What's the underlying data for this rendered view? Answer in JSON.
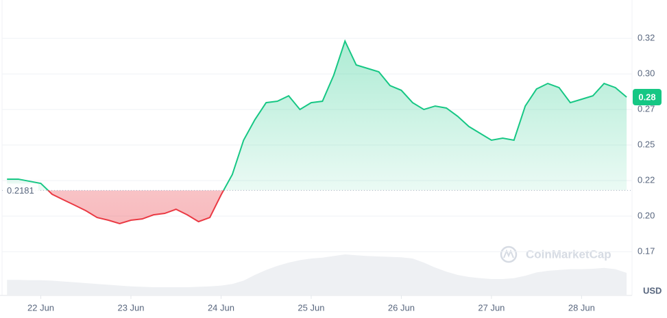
{
  "chart_data": {
    "type": "line",
    "x": [
      21.625,
      21.75,
      21.875,
      22,
      22.125,
      22.25,
      22.375,
      22.5,
      22.625,
      22.75,
      22.875,
      23,
      23.125,
      23.25,
      23.375,
      23.5,
      23.625,
      23.75,
      23.875,
      24,
      24.125,
      24.25,
      24.375,
      24.5,
      24.625,
      24.75,
      24.875,
      25,
      25.125,
      25.25,
      25.375,
      25.5,
      25.625,
      25.75,
      25.875,
      26,
      26.125,
      26.25,
      26.375,
      26.5,
      26.625,
      26.75,
      26.875,
      27,
      27.125,
      27.25,
      27.375,
      27.5,
      27.625,
      27.75,
      27.875,
      28,
      28.125,
      28.25,
      28.375,
      28.5
    ],
    "values": [
      0.226,
      0.226,
      0.2245,
      0.223,
      0.2154,
      0.2115,
      0.2077,
      0.2038,
      0.199,
      0.1971,
      0.1947,
      0.1971,
      0.198,
      0.2009,
      0.2019,
      0.2048,
      0.2009,
      0.1961,
      0.199,
      0.2149,
      0.2293,
      0.2534,
      0.2678,
      0.2798,
      0.2808,
      0.2846,
      0.275,
      0.2798,
      0.2808,
      0.2991,
      0.3231,
      0.3063,
      0.3039,
      0.3015,
      0.2918,
      0.2885,
      0.2798,
      0.275,
      0.2774,
      0.276,
      0.2702,
      0.263,
      0.2582,
      0.2534,
      0.2548,
      0.2534,
      0.2774,
      0.2894,
      0.2933,
      0.2904,
      0.2798,
      0.2822,
      0.2846,
      0.2933,
      0.2904,
      0.2837
    ],
    "volume": [
      38,
      38,
      37,
      37,
      36,
      34,
      32,
      30,
      28,
      26,
      24,
      22,
      21,
      20,
      20,
      20,
      20,
      21,
      22,
      24,
      28,
      36,
      50,
      62,
      72,
      80,
      86,
      90,
      92,
      96,
      100,
      98,
      96,
      95,
      94,
      93,
      90,
      80,
      68,
      58,
      50,
      45,
      42,
      40,
      40,
      42,
      48,
      56,
      60,
      62,
      64,
      64,
      65,
      67,
      64,
      55
    ],
    "volume_lim": [
      0,
      100
    ],
    "color_up": "#16c784",
    "color_down": "#ea3943",
    "baseline": 0.2181,
    "current": {
      "value": 0.2837,
      "label": "0.28"
    },
    "xlim": [
      21.57,
      28.56
    ],
    "ylim": [
      0.1442,
      0.3496
    ],
    "xticks": [
      {
        "value": 22,
        "label": "22 Jun"
      },
      {
        "value": 23,
        "label": "23 Jun"
      },
      {
        "value": 24,
        "label": "24 Jun"
      },
      {
        "value": 25,
        "label": "25 Jun"
      },
      {
        "value": 26,
        "label": "26 Jun"
      },
      {
        "value": 27,
        "label": "27 Jun"
      },
      {
        "value": 28,
        "label": "28 Jun"
      }
    ],
    "yticks": [
      {
        "value": 0.175,
        "label": "0.17"
      },
      {
        "value": 0.2,
        "label": "0.20"
      },
      {
        "value": 0.225,
        "label": "0.22"
      },
      {
        "value": 0.25,
        "label": "0.25"
      },
      {
        "value": 0.275,
        "label": "0.27"
      },
      {
        "value": 0.3,
        "label": "0.30"
      },
      {
        "value": 0.325,
        "label": "0.32"
      }
    ],
    "grid": true,
    "y_unit": "USD",
    "watermark": "CoinMarketCap"
  }
}
